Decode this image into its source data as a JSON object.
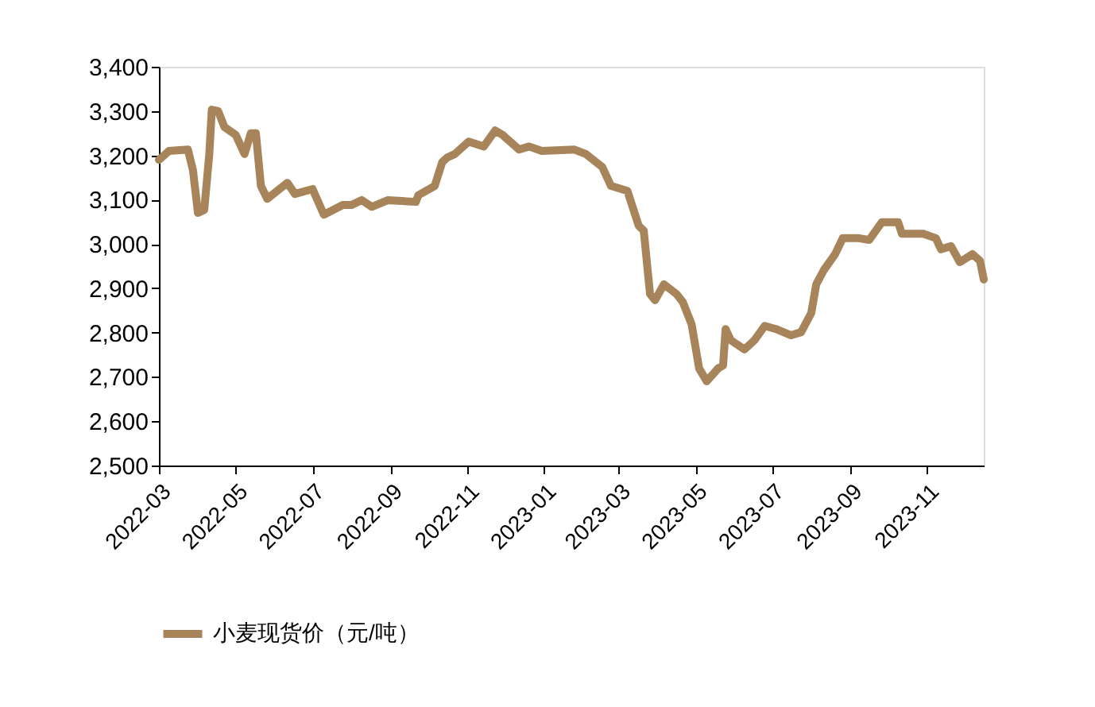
{
  "chart_data": {
    "type": "line",
    "x": [
      "2022-03-01",
      "2022-03-09",
      "2022-03-24",
      "2022-03-28",
      "2022-04-01",
      "2022-04-06",
      "2022-04-10",
      "2022-04-12",
      "2022-04-17",
      "2022-04-22",
      "2022-05-01",
      "2022-05-08",
      "2022-05-13",
      "2022-05-17",
      "2022-05-21",
      "2022-05-26",
      "2022-06-11",
      "2022-06-17",
      "2022-07-01",
      "2022-07-10",
      "2022-07-25",
      "2022-08-01",
      "2022-08-09",
      "2022-08-17",
      "2022-08-30",
      "2022-09-21",
      "2022-09-23",
      "2022-10-06",
      "2022-10-12",
      "2022-10-16",
      "2022-10-22",
      "2022-11-02",
      "2022-11-14",
      "2022-11-23",
      "2022-11-29",
      "2022-12-12",
      "2022-12-20",
      "2022-12-30",
      "2023-01-25",
      "2023-02-03",
      "2023-02-16",
      "2023-02-23",
      "2023-03-08",
      "2023-03-17",
      "2023-03-21",
      "2023-03-26",
      "2023-03-30",
      "2023-04-06",
      "2023-04-16",
      "2023-04-21",
      "2023-04-28",
      "2023-05-04",
      "2023-05-10",
      "2023-05-19",
      "2023-05-23",
      "2023-05-25",
      "2023-05-29",
      "2023-06-09",
      "2023-06-17",
      "2023-06-25",
      "2023-07-04",
      "2023-07-16",
      "2023-07-24",
      "2023-08-01",
      "2023-08-05",
      "2023-08-11",
      "2023-08-20",
      "2023-08-26",
      "2023-09-08",
      "2023-09-16",
      "2023-09-26",
      "2023-10-09",
      "2023-10-12",
      "2023-10-29",
      "2023-11-08",
      "2023-11-12",
      "2023-11-20",
      "2023-11-27",
      "2023-12-07",
      "2023-12-13",
      "2023-12-16"
    ],
    "series": [
      {
        "name": "小麦现货价（元/吨）",
        "color": "#a8845a",
        "values": [
          3190,
          3210,
          3213,
          3167,
          3070,
          3077,
          3203,
          3303,
          3300,
          3264,
          3246,
          3203,
          3250,
          3250,
          3131,
          3102,
          3138,
          3113,
          3124,
          3066,
          3088,
          3088,
          3099,
          3084,
          3099,
          3095,
          3110,
          3131,
          3185,
          3195,
          3203,
          3231,
          3220,
          3256,
          3246,
          3213,
          3220,
          3210,
          3213,
          3203,
          3174,
          3131,
          3120,
          3041,
          3030,
          2887,
          2873,
          2909,
          2887,
          2869,
          2819,
          2719,
          2690,
          2719,
          2726,
          2808,
          2783,
          2762,
          2783,
          2815,
          2808,
          2794,
          2801,
          2844,
          2909,
          2941,
          2977,
          3013,
          3013,
          3009,
          3049,
          3049,
          3023,
          3023,
          3013,
          2988,
          2995,
          2959,
          2977,
          2962,
          2920
        ]
      }
    ],
    "xlim": [
      "2022-03-01",
      "2023-12-16"
    ],
    "xticks": [
      {
        "value": "2022-03",
        "label": "2022-03"
      },
      {
        "value": "2022-05",
        "label": "2022-05"
      },
      {
        "value": "2022-07",
        "label": "2022-07"
      },
      {
        "value": "2022-09",
        "label": "2022-09"
      },
      {
        "value": "2022-11",
        "label": "2022-11"
      },
      {
        "value": "2023-01",
        "label": "2023-01"
      },
      {
        "value": "2023-03",
        "label": "2023-03"
      },
      {
        "value": "2023-05",
        "label": "2023-05"
      },
      {
        "value": "2023-07",
        "label": "2023-07"
      },
      {
        "value": "2023-09",
        "label": "2023-09"
      },
      {
        "value": "2023-11",
        "label": "2023-11"
      }
    ],
    "ylim": [
      2500,
      3400
    ],
    "yticks": [
      {
        "value": 2500,
        "label": "2,500"
      },
      {
        "value": 2600,
        "label": "2,600"
      },
      {
        "value": 2700,
        "label": "2,700"
      },
      {
        "value": 2800,
        "label": "2,800"
      },
      {
        "value": 2900,
        "label": "2,900"
      },
      {
        "value": 3000,
        "label": "3,000"
      },
      {
        "value": 3100,
        "label": "3,100"
      },
      {
        "value": 3200,
        "label": "3,200"
      },
      {
        "value": 3300,
        "label": "3,300"
      },
      {
        "value": 3400,
        "label": "3,400"
      }
    ],
    "grid": false,
    "legend": "bottom",
    "marker": "none",
    "line_style": "solid"
  }
}
